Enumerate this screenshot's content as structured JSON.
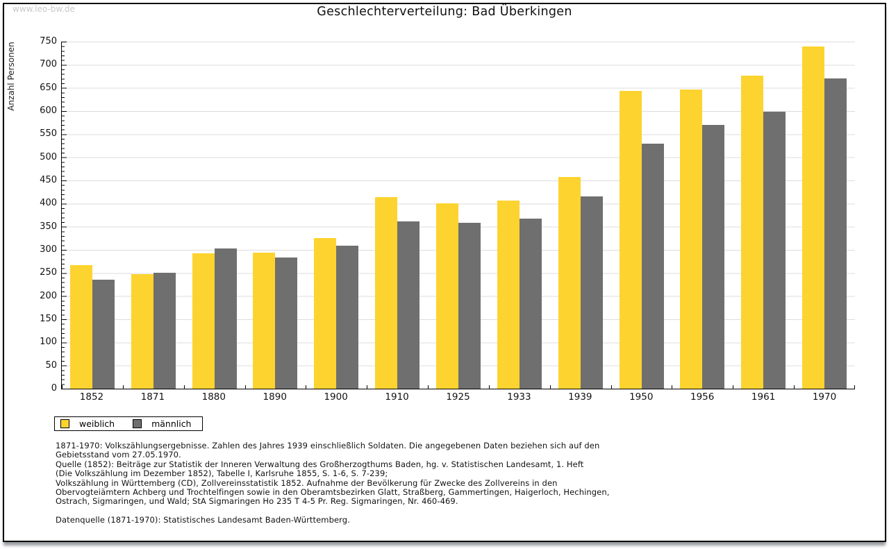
{
  "page": {
    "watermark": "www.leo-bw.de"
  },
  "chart_data": {
    "type": "bar",
    "title": "Geschlechterverteilung: Bad Überkingen",
    "xlabel": "",
    "ylabel": "Anzahl Personen",
    "ylim": [
      0,
      750
    ],
    "y_tick_step": 50,
    "y_ticks": [
      0,
      50,
      100,
      150,
      200,
      250,
      300,
      350,
      400,
      450,
      500,
      550,
      600,
      650,
      700,
      750
    ],
    "grid": true,
    "gridline_color": "#dcdcdc",
    "legend_position": "bottom-left",
    "categories": [
      "1852",
      "1871",
      "1880",
      "1890",
      "1900",
      "1910",
      "1925",
      "1933",
      "1939",
      "1950",
      "1956",
      "1961",
      "1970"
    ],
    "series": [
      {
        "name": "weiblich",
        "color": "#fdd32f",
        "values": [
          267,
          247,
          292,
          294,
          326,
          414,
          400,
          407,
          458,
          643,
          647,
          677,
          739
        ]
      },
      {
        "name": "männlich",
        "color": "#6f6f6f",
        "values": [
          235,
          250,
          303,
          284,
          309,
          362,
          359,
          368,
          416,
          530,
          570,
          598,
          670
        ]
      }
    ]
  },
  "footer": {
    "lines": [
      "1871-1970: Volkszählungsergebnisse. Zahlen des Jahres 1939 einschließlich Soldaten. Die angegebenen Daten beziehen sich auf den",
      "Gebietsstand vom 27.05.1970.",
      "Quelle (1852): Beiträge zur Statistik der Inneren Verwaltung des Großherzogthums Baden, hg. v. Statistischen Landesamt, 1. Heft",
      "(Die Volkszählung im Dezember 1852), Tabelle I, Karlsruhe 1855, S. 1-6, S. 7-239;",
      "Volkszählung in Württemberg (CD), Zollvereinsstatistik 1852. Aufnahme der Bevölkerung für Zwecke des Zollvereins in den",
      "Obervogteiämtern Achberg und Trochtelfingen sowie in den Oberamtsbezirken Glatt, Straßberg, Gammertingen, Haigerloch, Hechingen,",
      "Ostrach, Sigmaringen, und Wald; StA Sigmaringen Ho 235 T 4-5 Pr. Reg. Sigmaringen, Nr. 460-469.",
      "",
      "Datenquelle (1871-1970): Statistisches Landesamt Baden-Württemberg."
    ]
  }
}
